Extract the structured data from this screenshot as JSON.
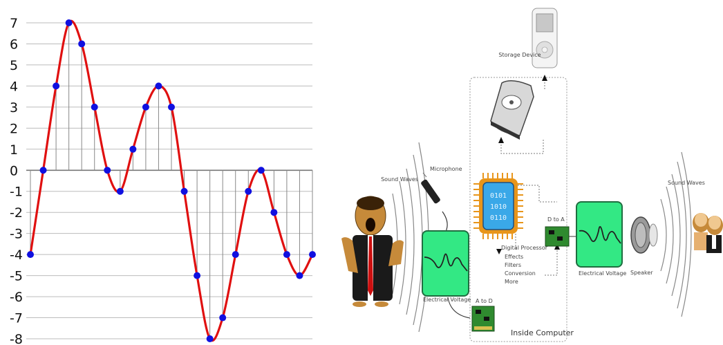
{
  "chart_data": {
    "type": "line",
    "y_ticks": [
      "7",
      "6",
      "5",
      "4",
      "3",
      "2",
      "1",
      "0",
      "-1",
      "-2",
      "-3",
      "-4",
      "-5",
      "-6",
      "-7",
      "-8"
    ],
    "ylim": [
      -8,
      7
    ],
    "x": [
      0,
      1,
      2,
      3,
      4,
      5,
      6,
      7,
      8,
      9,
      10,
      11,
      12,
      13,
      14,
      15,
      16,
      17,
      18,
      19,
      20,
      21,
      22
    ],
    "samples": [
      -4,
      0,
      4,
      7,
      6,
      3,
      0,
      -1,
      1,
      3,
      4,
      3,
      -1,
      -5,
      -8,
      -7,
      -4,
      -1,
      0,
      -2,
      -4,
      -5,
      -4
    ],
    "series": [
      {
        "role": "continuous-signal",
        "color": "#e01010"
      },
      {
        "role": "sample-points",
        "color": "#1010e0"
      }
    ]
  },
  "diagram": {
    "labels": {
      "sound_waves_left": "Sound Waves",
      "microphone": "Microphone",
      "storage": "Storage Device",
      "dsp_title": "Digital Processor",
      "dsp_items": [
        "Effects",
        "Filters",
        "Conversion",
        "More"
      ],
      "a_to_d": "A to D",
      "d_to_a": "D to A",
      "electrical_voltage_left": "Electrical Voltage",
      "electrical_voltage_right": "Electrical Voltage",
      "speaker": "Speaker",
      "sound_waves_right": "Sound Waves",
      "inside_computer": "Inside Computer",
      "chip_bits": [
        "0101",
        "1010",
        "0110"
      ]
    },
    "colors": {
      "scope_green": "#33e884",
      "chip_blue": "#3aa8e8",
      "chip_orange": "#e8951a",
      "card_green": "#2f8a2f"
    }
  }
}
